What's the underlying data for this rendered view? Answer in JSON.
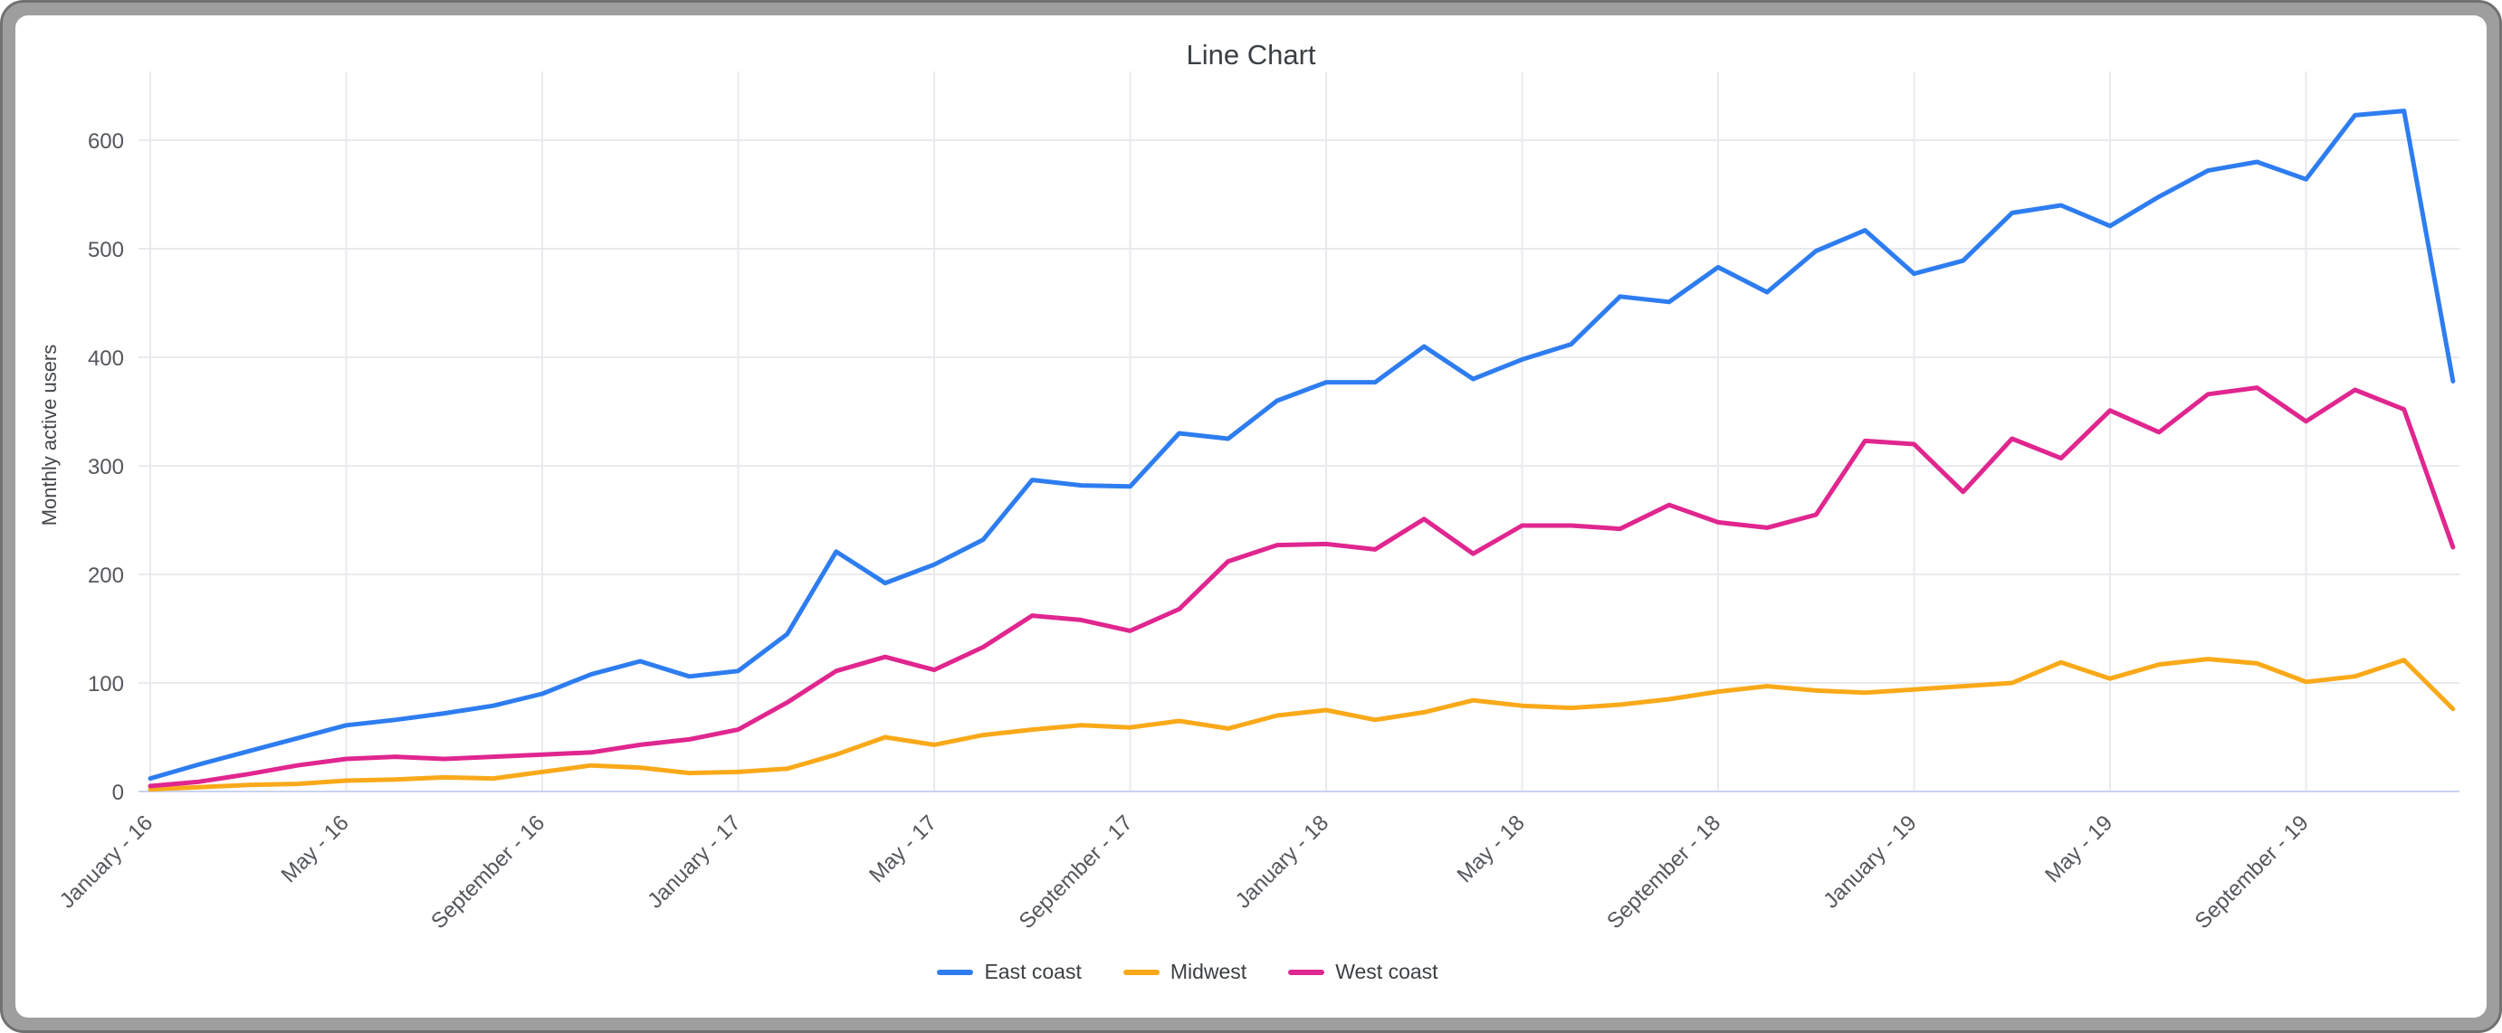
{
  "chart_data": {
    "type": "line",
    "title": "Line Chart",
    "xlabel": "",
    "ylabel": "Monthly active users",
    "ylim": [
      0,
      650
    ],
    "yticks": [
      0,
      100,
      200,
      300,
      400,
      500,
      600
    ],
    "x_tick_every": 4,
    "grid": true,
    "legend_position": "bottom",
    "grid_color": "#e9eaee",
    "zero_line_color": "#c7d3ee",
    "categories": [
      "January - 16",
      "February - 16",
      "March - 16",
      "April - 16",
      "May - 16",
      "June - 16",
      "July - 16",
      "August - 16",
      "September - 16",
      "October - 16",
      "November - 16",
      "December - 16",
      "January - 17",
      "February - 17",
      "March - 17",
      "April - 17",
      "May - 17",
      "June - 17",
      "July - 17",
      "August - 17",
      "September - 17",
      "October - 17",
      "November - 17",
      "December - 17",
      "January - 18",
      "February - 18",
      "March - 18",
      "April - 18",
      "May - 18",
      "June - 18",
      "July - 18",
      "August - 18",
      "September - 18",
      "October - 18",
      "November - 18",
      "December - 18",
      "January - 19",
      "February - 19",
      "March - 19",
      "April - 19",
      "May - 19",
      "June - 19",
      "July - 19",
      "August - 19",
      "September - 19",
      "October - 19",
      "November - 19",
      "December - 19"
    ],
    "x_tick_labels": [
      "January - 16",
      "May - 16",
      "September - 16",
      "January - 17",
      "May - 17",
      "September - 17",
      "January - 18",
      "May - 18",
      "September - 18",
      "January - 19",
      "May - 19",
      "September - 19"
    ],
    "series": [
      {
        "name": "East coast",
        "color": "#2e7df0",
        "values": [
          12,
          25,
          37,
          49,
          61,
          66,
          72,
          79,
          90,
          108,
          120,
          106,
          111,
          145,
          221,
          192,
          209,
          232,
          287,
          282,
          281,
          330,
          325,
          360,
          377,
          377,
          410,
          380,
          398,
          412,
          456,
          451,
          483,
          460,
          498,
          517,
          477,
          489,
          533,
          540,
          521,
          548,
          572,
          580,
          564,
          623,
          627,
          378
        ]
      },
      {
        "name": "Midwest",
        "color": "#f9a919",
        "values": [
          2,
          4,
          6,
          7,
          10,
          11,
          13,
          12,
          18,
          24,
          22,
          17,
          18,
          21,
          34,
          50,
          43,
          52,
          57,
          61,
          59,
          65,
          58,
          70,
          75,
          66,
          73,
          84,
          79,
          77,
          80,
          85,
          92,
          97,
          93,
          91,
          94,
          97,
          100,
          119,
          104,
          117,
          122,
          118,
          101,
          106,
          121,
          76
        ]
      },
      {
        "name": "West coast",
        "color": "#e0268f",
        "values": [
          5,
          9,
          16,
          24,
          30,
          32,
          30,
          32,
          34,
          36,
          43,
          48,
          57,
          82,
          111,
          124,
          112,
          133,
          162,
          158,
          148,
          168,
          212,
          227,
          228,
          223,
          251,
          219,
          245,
          245,
          242,
          264,
          248,
          243,
          255,
          323,
          320,
          276,
          325,
          307,
          351,
          331,
          366,
          372,
          341,
          370,
          352,
          225
        ]
      }
    ]
  }
}
